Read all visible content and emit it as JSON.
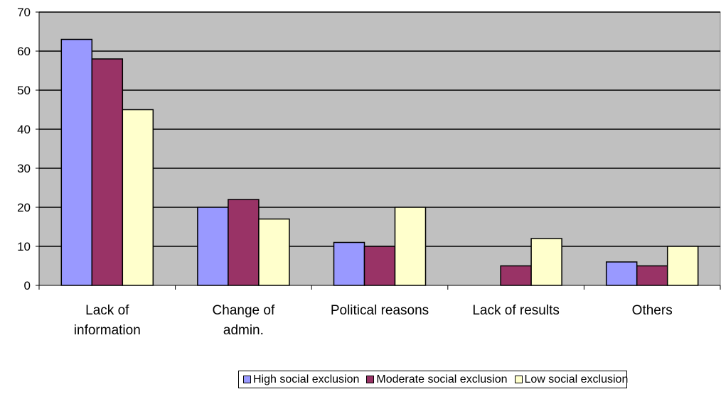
{
  "chart_data": {
    "type": "bar",
    "categories": [
      [
        "Lack of",
        "information"
      ],
      [
        "Change of",
        "admin."
      ],
      [
        "Political reasons"
      ],
      [
        "Lack of results"
      ],
      [
        "Others"
      ]
    ],
    "series": [
      {
        "name": "High social exclusion",
        "color": "#9999ff",
        "values": [
          63,
          20,
          11,
          0,
          6
        ]
      },
      {
        "name": "Moderate social exclusion",
        "color": "#993366",
        "values": [
          58,
          22,
          10,
          5,
          5
        ]
      },
      {
        "name": "Low social exclusion",
        "color": "#ffffcc",
        "values": [
          45,
          17,
          20,
          12,
          10
        ]
      }
    ],
    "ylim": [
      0,
      70
    ],
    "yticks": [
      0,
      10,
      20,
      30,
      40,
      50,
      60,
      70
    ],
    "plot_background": "#c0c0c0",
    "grid": true,
    "legend_position": "bottom"
  }
}
